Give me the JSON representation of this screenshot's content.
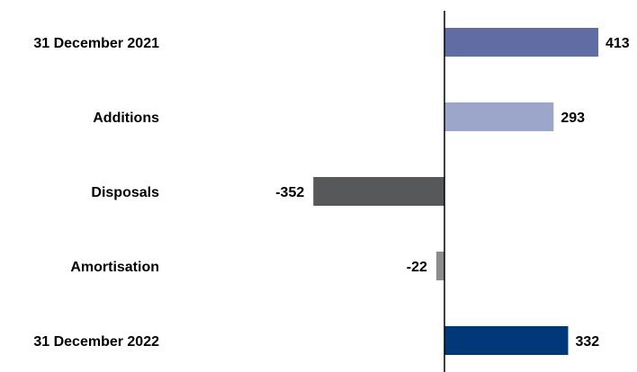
{
  "chart_data": {
    "type": "bar",
    "orientation": "horizontal",
    "categories": [
      "31 December 2021",
      "Additions",
      "Disposals",
      "Amortisation",
      "31 December 2022"
    ],
    "values": [
      413,
      293,
      -352,
      -22,
      332
    ],
    "value_labels": [
      "413",
      "293",
      "-352",
      "-22",
      "332"
    ],
    "colors": [
      "#5f6da4",
      "#9ba6ca",
      "#575859",
      "#8d8d8d",
      "#00387a"
    ],
    "xlim": [
      -470,
      505
    ],
    "title": "",
    "xlabel": "",
    "ylabel": "",
    "grid": false,
    "legend": "none",
    "zero_axis_color": "#000000"
  }
}
